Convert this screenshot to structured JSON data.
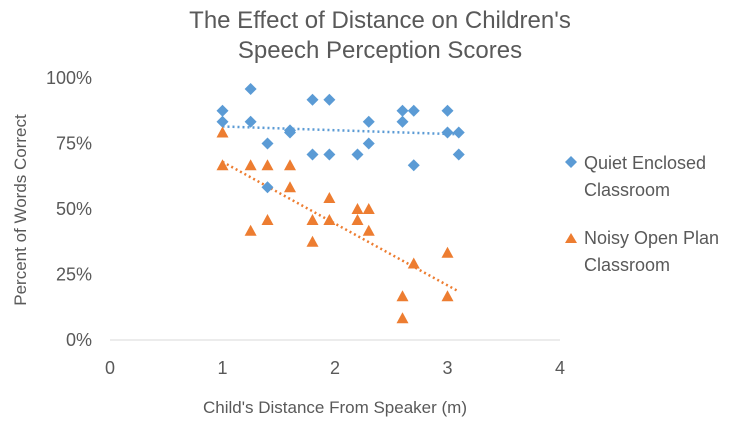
{
  "chart_data": {
    "type": "scatter",
    "title": [
      "The Effect of Distance on Children's",
      "Speech Perception Scores"
    ],
    "xlabel": "Child's Distance From Speaker (m)",
    "ylabel": "Percent of Words Correct",
    "xlim": [
      0,
      4
    ],
    "ylim": [
      0,
      100
    ],
    "x_ticks": [
      "0",
      "1",
      "2",
      "3",
      "4"
    ],
    "y_ticks": [
      "0%",
      "25%",
      "50%",
      "75%",
      "100%"
    ],
    "grid": false,
    "legend_position": "right",
    "series": [
      {
        "name": [
          "Quiet Enclosed",
          "Classroom"
        ],
        "marker": "diamond",
        "color": "#5B9BD5",
        "points": [
          [
            1.0,
            87.5
          ],
          [
            1.0,
            83.3
          ],
          [
            1.25,
            95.8
          ],
          [
            1.25,
            83.3
          ],
          [
            1.4,
            75.0
          ],
          [
            1.4,
            58.3
          ],
          [
            1.6,
            80.0
          ],
          [
            1.6,
            79.2
          ],
          [
            1.8,
            91.7
          ],
          [
            1.8,
            70.8
          ],
          [
            1.95,
            91.7
          ],
          [
            1.95,
            70.8
          ],
          [
            2.2,
            70.8
          ],
          [
            2.3,
            83.3
          ],
          [
            2.3,
            75.0
          ],
          [
            2.6,
            87.5
          ],
          [
            2.6,
            83.3
          ],
          [
            2.7,
            87.5
          ],
          [
            2.7,
            66.7
          ],
          [
            3.0,
            87.5
          ],
          [
            3.0,
            79.2
          ],
          [
            3.1,
            79.2
          ],
          [
            3.1,
            70.8
          ]
        ],
        "trendline": [
          [
            1.0,
            81.5
          ],
          [
            3.1,
            78.5
          ]
        ]
      },
      {
        "name": [
          "Noisy Open Plan",
          "Classroom"
        ],
        "marker": "triangle",
        "color": "#ED7D31",
        "points": [
          [
            1.0,
            79.2
          ],
          [
            1.0,
            66.7
          ],
          [
            1.25,
            66.7
          ],
          [
            1.25,
            41.7
          ],
          [
            1.4,
            66.7
          ],
          [
            1.4,
            45.8
          ],
          [
            1.6,
            66.7
          ],
          [
            1.6,
            58.3
          ],
          [
            1.8,
            45.8
          ],
          [
            1.8,
            37.5
          ],
          [
            1.95,
            54.2
          ],
          [
            1.95,
            45.8
          ],
          [
            2.2,
            50.0
          ],
          [
            2.2,
            45.8
          ],
          [
            2.3,
            50.0
          ],
          [
            2.3,
            41.7
          ],
          [
            2.6,
            16.7
          ],
          [
            2.6,
            8.3
          ],
          [
            2.7,
            29.2
          ],
          [
            3.0,
            33.3
          ],
          [
            3.0,
            16.7
          ]
        ],
        "trendline": [
          [
            1.0,
            68.0
          ],
          [
            3.1,
            18.5
          ]
        ]
      }
    ]
  }
}
